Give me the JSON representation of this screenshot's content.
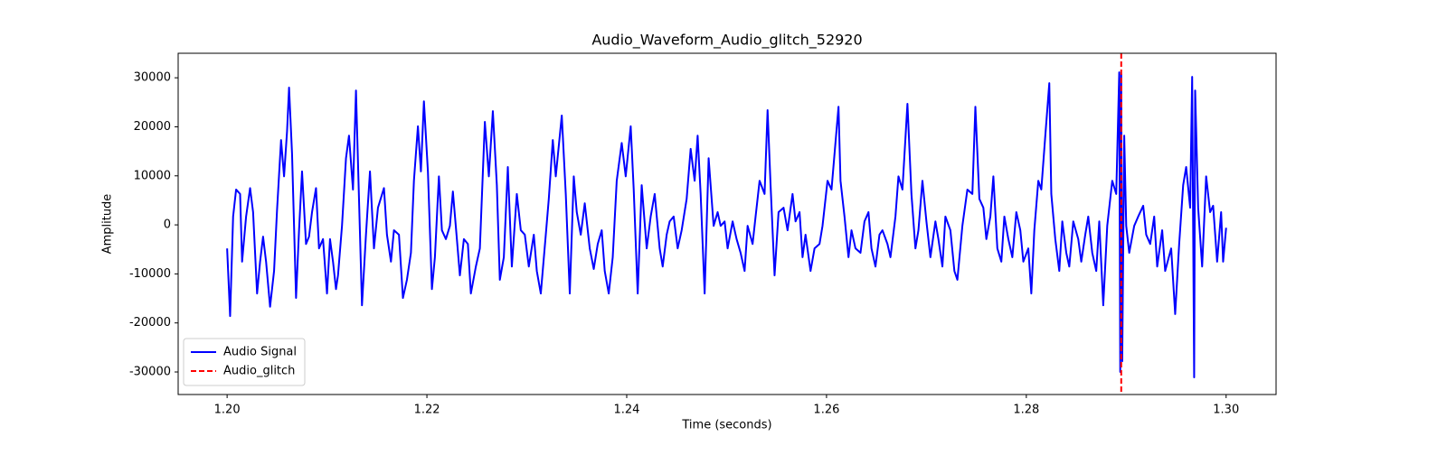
{
  "chart_data": {
    "type": "line",
    "title": "Audio_Waveform_Audio_glitch_52920",
    "xlabel": "Time (seconds)",
    "ylabel": "Amplitude",
    "x": [
      1.2,
      1.2003,
      1.2006,
      1.2009,
      1.2013,
      1.2015,
      1.2019,
      1.2023,
      1.2026,
      1.203,
      1.2033,
      1.2036,
      1.2039,
      1.2043,
      1.2047,
      1.205,
      1.2054,
      1.2057,
      1.206,
      1.2062,
      1.2065,
      1.2069,
      1.2072,
      1.2075,
      1.2079,
      1.2082,
      1.2085,
      1.2089,
      1.2092,
      1.2096,
      1.21,
      1.2103,
      1.2106,
      1.2109,
      1.2111,
      1.2115,
      1.2119,
      1.2122,
      1.2126,
      1.2129,
      1.2131,
      1.2135,
      1.2139,
      1.2143,
      1.2147,
      1.2151,
      1.2157,
      1.216,
      1.2164,
      1.2167,
      1.2172,
      1.2176,
      1.218,
      1.2184,
      1.2187,
      1.2191,
      1.2194,
      1.2197,
      1.2201,
      1.2205,
      1.2208,
      1.2212,
      1.2215,
      1.2219,
      1.2223,
      1.2226,
      1.223,
      1.2233,
      1.2237,
      1.2241,
      1.2244,
      1.2249,
      1.2253,
      1.2258,
      1.2262,
      1.2266,
      1.227,
      1.2273,
      1.2277,
      1.2281,
      1.2285,
      1.229,
      1.2294,
      1.2298,
      1.2302,
      1.2307,
      1.231,
      1.2314,
      1.2319,
      1.2322,
      1.2326,
      1.2329,
      1.2335,
      1.2339,
      1.2343,
      1.2347,
      1.235,
      1.2354,
      1.2358,
      1.2363,
      1.2367,
      1.2371,
      1.2375,
      1.2378,
      1.2382,
      1.2386,
      1.239,
      1.2395,
      1.2399,
      1.2404,
      1.2407,
      1.2411,
      1.2415,
      1.242,
      1.2424,
      1.2428,
      1.2433,
      1.2436,
      1.244,
      1.2443,
      1.2447,
      1.2451,
      1.2455,
      1.246,
      1.2464,
      1.2468,
      1.2471,
      1.2474,
      1.2478,
      1.2482,
      1.2487,
      1.2491,
      1.2494,
      1.2498,
      1.2501,
      1.2506,
      1.251,
      1.2514,
      1.2518,
      1.2521,
      1.2526,
      1.2529,
      1.2533,
      1.2538,
      1.2541,
      1.2544,
      1.2548,
      1.2552,
      1.2557,
      1.2561,
      1.2566,
      1.2569,
      1.2573,
      1.2576,
      1.2579,
      1.2584,
      1.2588,
      1.2593,
      1.2596,
      1.2601,
      1.2605,
      1.2612,
      1.2614,
      1.2618,
      1.2622,
      1.2625,
      1.2629,
      1.2634,
      1.2638,
      1.2642,
      1.2645,
      1.2649,
      1.2653,
      1.2656,
      1.2661,
      1.2664,
      1.2669,
      1.2672,
      1.2676,
      1.2681,
      1.2685,
      1.2689,
      1.2692,
      1.2696,
      1.27,
      1.2704,
      1.2709,
      1.2712,
      1.2716,
      1.2719,
      1.2724,
      1.2728,
      1.2731,
      1.2736,
      1.2741,
      1.2746,
      1.2749,
      1.2753,
      1.2757,
      1.276,
      1.2764,
      1.2767,
      1.2771,
      1.2775,
      1.2778,
      1.2782,
      1.2786,
      1.279,
      1.2794,
      1.2797,
      1.2802,
      1.2805,
      1.2808,
      1.2812,
      1.2815,
      1.2819,
      1.2823,
      1.2825,
      1.2829,
      1.2833,
      1.2836,
      1.284,
      1.2843,
      1.2847,
      1.2852,
      1.2855,
      1.2859,
      1.2862,
      1.2866,
      1.287,
      1.2873,
      1.2877,
      1.2881,
      1.2886,
      1.289,
      1.2893,
      1.2894,
      1.2895,
      1.2896,
      1.2898,
      1.29,
      1.2903,
      1.2908,
      1.2912,
      1.2917,
      1.292,
      1.2924,
      1.2928,
      1.2931,
      1.2936,
      1.2939,
      1.2945,
      1.2949,
      1.2953,
      1.2957,
      1.296,
      1.2964,
      1.2966,
      1.2968,
      1.2969,
      1.2972,
      1.2976,
      1.298,
      1.2984,
      1.2987,
      1.2991,
      1.2995,
      1.2997,
      1.3
    ],
    "series": [
      {
        "name": "Audio Signal",
        "color": "#0000ff",
        "values": [
          -4800,
          -18600,
          1700,
          7200,
          6300,
          -7500,
          1700,
          7500,
          2600,
          -14000,
          -7500,
          -2400,
          -7500,
          -16700,
          -9400,
          3100,
          17300,
          9900,
          19100,
          28000,
          14500,
          -14900,
          -1100,
          10900,
          -3900,
          -2400,
          2600,
          7500,
          -4800,
          -2900,
          -14000,
          -2900,
          -7500,
          -13100,
          -10300,
          -200,
          13600,
          18200,
          7200,
          27400,
          12700,
          -16400,
          -2000,
          10900,
          -4800,
          3500,
          7500,
          -2000,
          -7500,
          -1100,
          -2000,
          -14900,
          -11200,
          -5700,
          9000,
          20100,
          10900,
          25200,
          10900,
          -13100,
          -6600,
          9900,
          -1100,
          -2900,
          -200,
          6800,
          -2900,
          -10300,
          -2900,
          -3900,
          -14000,
          -8500,
          -4800,
          21000,
          9900,
          23200,
          8100,
          -11200,
          -6600,
          11800,
          -8500,
          6300,
          -1100,
          -2000,
          -8500,
          -2000,
          -9400,
          -14000,
          -2000,
          5300,
          17300,
          9900,
          22300,
          6300,
          -14000,
          9900,
          2600,
          -2000,
          4400,
          -4800,
          -9000,
          -3900,
          -1100,
          -9400,
          -14000,
          -6600,
          9000,
          16700,
          9900,
          20100,
          7200,
          -14000,
          8100,
          -4800,
          1700,
          6300,
          -4800,
          -8500,
          -2000,
          700,
          1700,
          -4800,
          -1100,
          5300,
          15500,
          9000,
          18200,
          6300,
          -14000,
          13600,
          -200,
          2600,
          -200,
          700,
          -4800,
          700,
          -2900,
          -5700,
          -9400,
          -200,
          -3900,
          1700,
          9000,
          6300,
          23400,
          8100,
          -10300,
          2600,
          3500,
          -1100,
          6300,
          700,
          2600,
          -6600,
          -2000,
          -9400,
          -4800,
          -3900,
          -200,
          9000,
          7200,
          24100,
          9000,
          1700,
          -6600,
          -1100,
          -4800,
          -5700,
          700,
          2600,
          -4800,
          -8500,
          -2000,
          -1100,
          -3900,
          -6600,
          1700,
          9900,
          7200,
          24700,
          6300,
          -4800,
          -1100,
          9000,
          700,
          -6600,
          700,
          -2900,
          -8500,
          1700,
          -1100,
          -9400,
          -11200,
          -200,
          7200,
          6300,
          24100,
          5300,
          3500,
          -2900,
          1700,
          9900,
          -4800,
          -7500,
          1700,
          -2900,
          -6600,
          2600,
          -1100,
          -7500,
          -4800,
          -14000,
          -1100,
          9000,
          7200,
          18200,
          28900,
          6300,
          -2900,
          -9400,
          700,
          -5700,
          -8500,
          700,
          -2900,
          -7500,
          -2000,
          1700,
          -5700,
          -9400,
          700,
          -16400,
          -200,
          9000,
          6300,
          31100,
          -30000,
          30700,
          -27800,
          18200,
          -200,
          -5700,
          -200,
          1700,
          3900,
          -2000,
          -3900,
          1700,
          -8500,
          -1100,
          -9400,
          -4800,
          -18200,
          -3900,
          8100,
          11800,
          3500,
          30200,
          -31100,
          27400,
          3500,
          -8500,
          9900,
          2600,
          3900,
          -7500,
          2600,
          -7500,
          -600
        ]
      }
    ],
    "vlines": [
      {
        "name": "Audio_glitch",
        "x": 1.2895,
        "color": "#ff0000"
      }
    ],
    "xlim": [
      1.1951,
      1.305
    ],
    "ylim": [
      -34600,
      35000
    ],
    "xticks": [
      {
        "value": 1.2,
        "label": "1.20"
      },
      {
        "value": 1.22,
        "label": "1.22"
      },
      {
        "value": 1.24,
        "label": "1.24"
      },
      {
        "value": 1.26,
        "label": "1.26"
      },
      {
        "value": 1.28,
        "label": "1.28"
      },
      {
        "value": 1.3,
        "label": "1.30"
      }
    ],
    "yticks": [
      -30000,
      -20000,
      -10000,
      0,
      10000,
      20000,
      30000
    ],
    "legend": "lower left",
    "grid": false
  }
}
